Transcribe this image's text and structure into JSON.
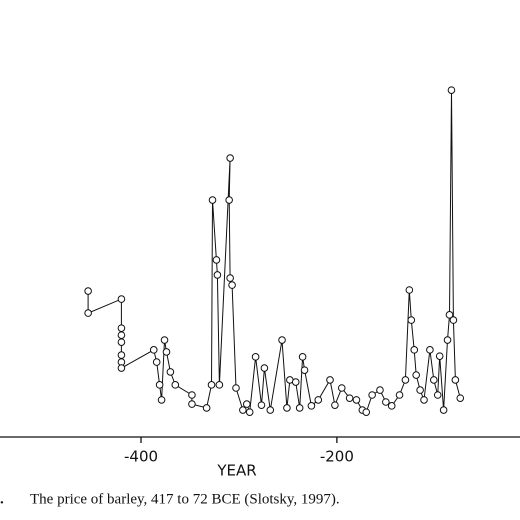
{
  "chart_data": {
    "type": "line",
    "x_label": "YEAR",
    "figure_label": ".",
    "caption": "The price of barley, 417 to 72 BCE (Slotsky, 1997).",
    "xlim": [
      -544,
      -13
    ],
    "xticks": [
      -400,
      -200
    ],
    "ylim": [
      0,
      100
    ],
    "color": "#111111",
    "x": [
      -454,
      -454,
      -420,
      -420,
      -420,
      -420,
      -420,
      -420,
      -420,
      -387,
      -384,
      -381,
      -379,
      -376,
      -374,
      -370,
      -365,
      -348,
      -348,
      -333,
      -328,
      -327,
      -323,
      -322,
      -320,
      -309,
      -310,
      -309,
      -307,
      -303,
      -296,
      -292,
      -289,
      -283,
      -277,
      -274,
      -268,
      -256,
      -251,
      -248,
      -242,
      -238,
      -235,
      -233,
      -226,
      -219,
      -207,
      -202,
      -195,
      -187,
      -180,
      -174,
      -170,
      -164,
      -156,
      -150,
      -144,
      -136,
      -130,
      -126,
      -124,
      -121,
      -119,
      -115,
      -111,
      -105,
      -101,
      -97,
      -95,
      -91,
      -87,
      -85,
      -83,
      -81,
      -79,
      -74
    ],
    "values": [
      41.7,
      35.4,
      39.4,
      31.1,
      29.1,
      27.1,
      23.4,
      21.4,
      19.7,
      24.9,
      21.4,
      14.9,
      10.6,
      27.7,
      24.3,
      18.6,
      14.9,
      12,
      9.4,
      8.3,
      14.9,
      67.7,
      50.6,
      46.3,
      14.9,
      79.7,
      67.7,
      45.4,
      43.4,
      14,
      7.7,
      9.4,
      7.1,
      22.9,
      9.1,
      19.7,
      7.7,
      27.7,
      8.3,
      16.3,
      15.7,
      8.3,
      22.9,
      19.1,
      8.9,
      10.6,
      16.3,
      9.1,
      14,
      11.1,
      10.6,
      7.7,
      7.1,
      12,
      13.4,
      10,
      8.9,
      12,
      16.3,
      42,
      33.4,
      24.9,
      17.7,
      13.4,
      10.6,
      24.9,
      16.3,
      12,
      23.1,
      7.7,
      27.7,
      34.9,
      99.1,
      33.4,
      16.3,
      11.1
    ]
  }
}
